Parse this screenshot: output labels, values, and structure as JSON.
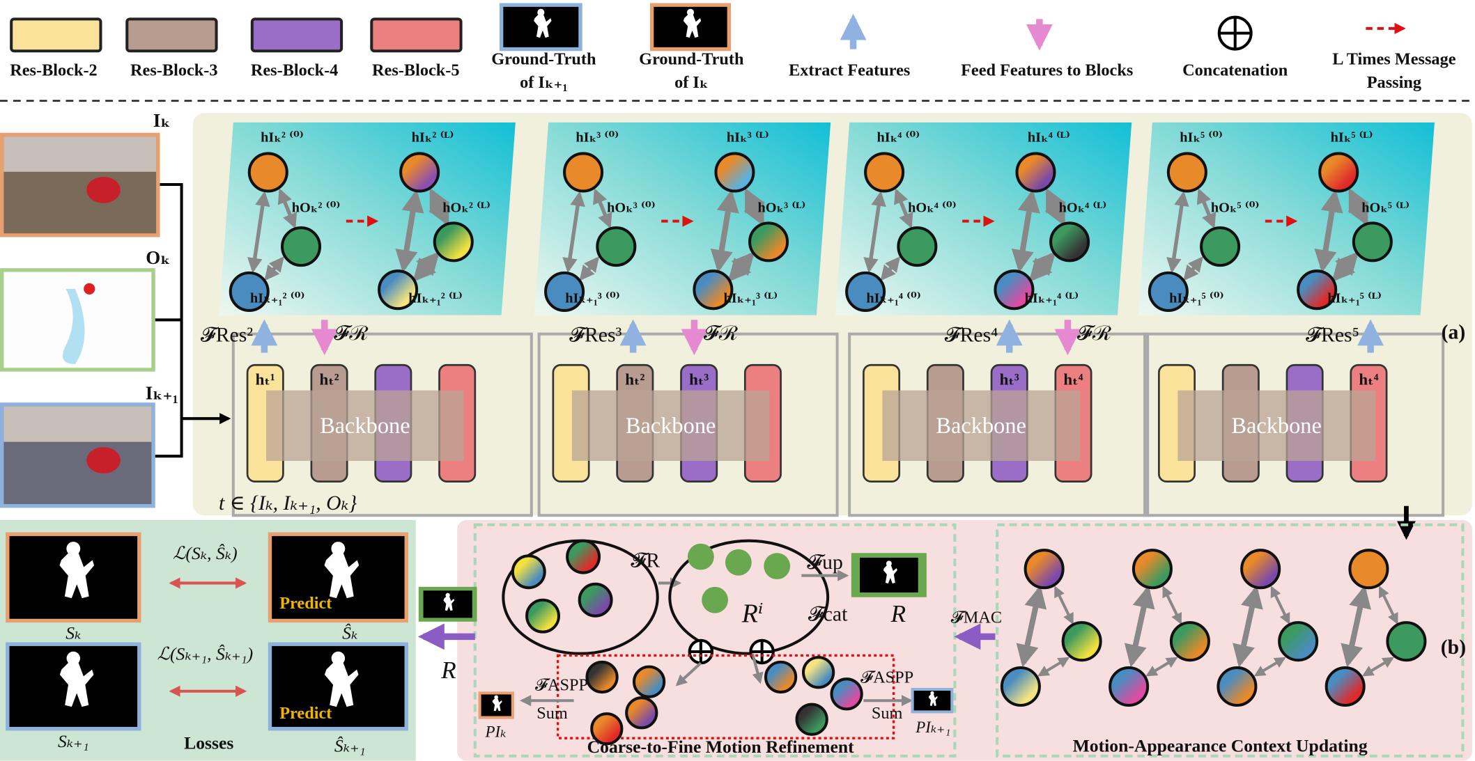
{
  "legend": {
    "items": [
      {
        "lines": [
          "Res-Block-2"
        ]
      },
      {
        "lines": [
          "Res-Block-3"
        ]
      },
      {
        "lines": [
          "Res-Block-4"
        ]
      },
      {
        "lines": [
          "Res-Block-5"
        ]
      },
      {
        "lines": [
          "Ground-Truth",
          "of  Iₖ₊₁"
        ]
      },
      {
        "lines": [
          "Ground-Truth",
          "of  Iₖ"
        ]
      },
      {
        "lines": [
          "Extract Features"
        ]
      },
      {
        "lines": [
          "Feed Features to Blocks"
        ]
      },
      {
        "lines": [
          "Concatenation"
        ]
      },
      {
        "lines": [
          "L Times Message",
          "Passing"
        ]
      }
    ]
  },
  "inputs": [
    "Iₖ",
    "Oₖ",
    "Iₖ₊₁"
  ],
  "panel_a": {
    "label": "(a)",
    "time_set": "t ∈ {Iₖ, Iₖ₊₁, Oₖ}",
    "backbone": "Backbone",
    "stages": [
      {
        "nodes_initial": [
          "hIₖ² ⁽⁰⁾",
          "hOₖ² ⁽⁰⁾",
          "hIₖ₊₁² ⁽⁰⁾"
        ],
        "nodes_updated": [
          "hIₖ² ⁽ᴸ⁾",
          "hOₖ² ⁽ᴸ⁾",
          "hIₖ₊₁² ⁽ᴸ⁾"
        ],
        "extract": "𝓕Res²",
        "feed": "𝓕ℛ",
        "blocks": [
          "hₜ¹",
          "hₜ²",
          null,
          null
        ]
      },
      {
        "nodes_initial": [
          "hIₖ³ ⁽⁰⁾",
          "hOₖ³ ⁽⁰⁾",
          "hIₖ₊₁³ ⁽⁰⁾"
        ],
        "nodes_updated": [
          "hIₖ³ ⁽ᴸ⁾",
          "hOₖ³ ⁽ᴸ⁾",
          "hIₖ₊₁³ ⁽ᴸ⁾"
        ],
        "extract": "𝓕Res³",
        "feed": "𝓕ℛ",
        "blocks": [
          null,
          "hₜ²",
          "hₜ³",
          null
        ]
      },
      {
        "nodes_initial": [
          "hIₖ⁴ ⁽⁰⁾",
          "hOₖ⁴ ⁽⁰⁾",
          "hIₖ₊₁⁴ ⁽⁰⁾"
        ],
        "nodes_updated": [
          "hIₖ⁴ ⁽ᴸ⁾",
          "hOₖ⁴ ⁽ᴸ⁾",
          "hIₖ₊₁⁴ ⁽ᴸ⁾"
        ],
        "extract": "𝓕Res⁴",
        "feed": "𝓕ℛ",
        "blocks": [
          null,
          null,
          "hₜ³",
          "hₜ⁴"
        ]
      },
      {
        "nodes_initial": [
          "hIₖ⁵ ⁽⁰⁾",
          "hOₖ⁵ ⁽⁰⁾",
          "hIₖ₊₁⁵ ⁽⁰⁾"
        ],
        "nodes_updated": [
          "hIₖ⁵ ⁽ᴸ⁾",
          "hOₖ⁵ ⁽ᴸ⁾",
          "hIₖ₊₁⁵ ⁽ᴸ⁾"
        ],
        "extract": "𝓕Res⁵",
        "blocks": [
          null,
          null,
          null,
          "hₜ⁴"
        ]
      }
    ]
  },
  "panel_b": {
    "label": "(b)",
    "refine_title": "Coarse-to-Fine Motion Refinement",
    "mac_title": "Motion-Appearance Context Updating",
    "f_r": "𝓕R",
    "r_i": "Rⁱ",
    "f_up": "𝓕up",
    "f_cat": "𝓕cat",
    "r": "R",
    "f_mac": "𝓕MAC",
    "aspp_left": "𝓕ASPP",
    "aspp_right": "𝓕ASPP",
    "sum_left": "Sum",
    "sum_right": "Sum",
    "p_left": "PIₖ",
    "p_right": "PIₖ₊₁",
    "r_out": "R"
  },
  "losses": {
    "title": "Losses",
    "loss_k": "ℒ(Sₖ, Ŝₖ)",
    "loss_k1": "ℒ(Sₖ₊₁, Ŝₖ₊₁)",
    "s_k": "Sₖ",
    "s_hat_k": "Ŝₖ",
    "s_k1": "Sₖ₊₁",
    "s_hat_k1": "Ŝₖ₊₁",
    "predict": "Predict"
  }
}
